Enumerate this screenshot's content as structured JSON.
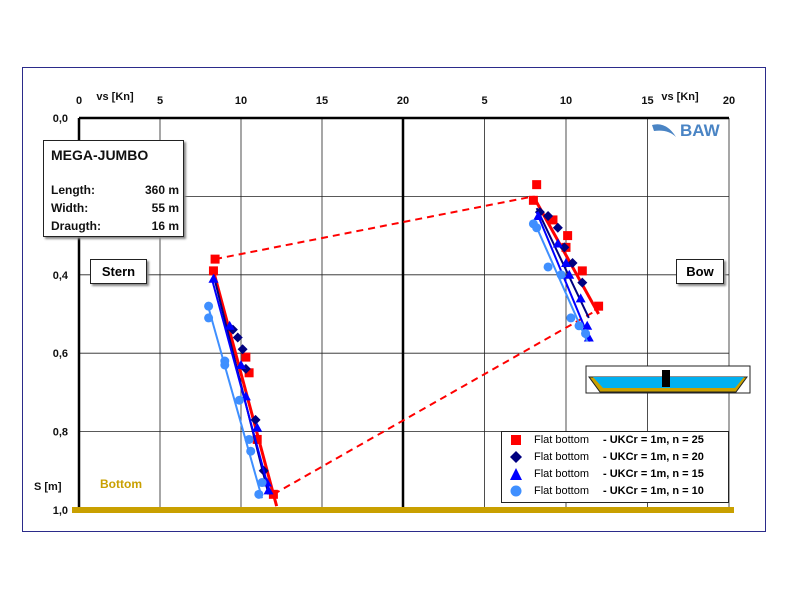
{
  "chart_data": {
    "type": "scatter",
    "panels": [
      {
        "name": "Stern",
        "x_ticks": [
          "0",
          "5",
          "10",
          "15",
          "20"
        ],
        "xlim": [
          0,
          20
        ]
      },
      {
        "name": "Bow",
        "x_ticks": [
          "5",
          "10",
          "15",
          "20"
        ],
        "xlim": [
          0,
          20
        ]
      }
    ],
    "xlabel": "vs [Kn]",
    "ylabel": "S [m]",
    "y_ticks": [
      "0,0",
      "0,4",
      "0,6",
      "0,8",
      "1,0"
    ],
    "ylim": [
      0,
      1.0
    ],
    "grid": true,
    "bottom_label": "Bottom",
    "stern_label": "Stern",
    "bow_label": "Bow",
    "series": [
      {
        "name": "Flat bottom",
        "desc": "- UKCr = 1m, n = 25",
        "marker": "square",
        "color": "#ff0000",
        "stern_points": [
          [
            8.4,
            0.36
          ],
          [
            8.3,
            0.39
          ],
          [
            10.3,
            0.61
          ],
          [
            10.5,
            0.65
          ],
          [
            11.0,
            0.82
          ],
          [
            12.0,
            0.96
          ]
        ],
        "stern_fit": [
          [
            8.3,
            0.39
          ],
          [
            12.2,
            0.99
          ]
        ],
        "bow_points": [
          [
            8.2,
            0.17
          ],
          [
            8.0,
            0.21
          ],
          [
            9.2,
            0.26
          ],
          [
            10.1,
            0.3
          ],
          [
            10.0,
            0.33
          ],
          [
            11.0,
            0.39
          ],
          [
            12.0,
            0.48
          ]
        ],
        "bow_fit": [
          [
            8.0,
            0.2
          ],
          [
            12.0,
            0.5
          ]
        ]
      },
      {
        "name": "Flat bottom",
        "desc": "- UKCr = 1m, n = 20",
        "marker": "diamond",
        "color": "#000080",
        "stern_points": [
          [
            9.5,
            0.54
          ],
          [
            9.8,
            0.56
          ],
          [
            10.1,
            0.59
          ],
          [
            10.3,
            0.64
          ],
          [
            10.9,
            0.77
          ],
          [
            11.4,
            0.9
          ]
        ],
        "stern_fit": [
          [
            8.3,
            0.4
          ],
          [
            11.7,
            0.96
          ]
        ],
        "bow_points": [
          [
            8.4,
            0.24
          ],
          [
            8.9,
            0.25
          ],
          [
            9.5,
            0.28
          ],
          [
            9.9,
            0.33
          ],
          [
            10.4,
            0.37
          ],
          [
            11.0,
            0.42
          ]
        ],
        "bow_fit": [
          [
            8.2,
            0.23
          ],
          [
            11.4,
            0.51
          ]
        ]
      },
      {
        "name": "Flat bottom",
        "desc": "- UKCr = 1m, n = 15",
        "marker": "triangle",
        "color": "#0000ff",
        "stern_points": [
          [
            8.3,
            0.41
          ],
          [
            9.3,
            0.53
          ],
          [
            10.0,
            0.63
          ],
          [
            10.3,
            0.71
          ],
          [
            11.0,
            0.79
          ],
          [
            11.6,
            0.93
          ],
          [
            11.7,
            0.95
          ]
        ],
        "stern_fit": [
          [
            8.2,
            0.41
          ],
          [
            11.8,
            0.96
          ]
        ],
        "bow_points": [
          [
            8.3,
            0.25
          ],
          [
            9.5,
            0.32
          ],
          [
            10.0,
            0.37
          ],
          [
            10.2,
            0.4
          ],
          [
            10.9,
            0.46
          ],
          [
            11.3,
            0.53
          ],
          [
            11.4,
            0.56
          ]
        ],
        "bow_fit": [
          [
            8.2,
            0.24
          ],
          [
            11.5,
            0.57
          ]
        ]
      },
      {
        "name": "Flat bottom",
        "desc": "- UKCr = 1m, n = 10",
        "marker": "circle",
        "color": "#3f8fff",
        "stern_points": [
          [
            8.0,
            0.48
          ],
          [
            8.0,
            0.51
          ],
          [
            9.0,
            0.62
          ],
          [
            9.0,
            0.63
          ],
          [
            9.9,
            0.72
          ],
          [
            10.5,
            0.82
          ],
          [
            10.6,
            0.85
          ],
          [
            11.3,
            0.93
          ],
          [
            11.1,
            0.96
          ]
        ],
        "stern_fit": [
          [
            7.9,
            0.47
          ],
          [
            11.3,
            0.97
          ]
        ],
        "bow_points": [
          [
            8.0,
            0.27
          ],
          [
            8.2,
            0.28
          ],
          [
            8.9,
            0.38
          ],
          [
            9.7,
            0.4
          ],
          [
            10.3,
            0.51
          ],
          [
            10.8,
            0.53
          ],
          [
            11.2,
            0.55
          ]
        ],
        "bow_fit": [
          [
            8.0,
            0.26
          ],
          [
            11.3,
            0.57
          ]
        ]
      }
    ],
    "connectors": [
      {
        "from_panel": "Stern",
        "from": [
          8.4,
          0.36
        ],
        "to_panel": "Bow",
        "to": [
          8.0,
          0.2
        ]
      },
      {
        "from_panel": "Stern",
        "from": [
          12.0,
          0.96
        ],
        "to_panel": "Bow",
        "to": [
          11.9,
          0.49
        ]
      }
    ]
  },
  "ship_info": {
    "title": "MEGA-JUMBO",
    "rows": [
      {
        "label": "Length:",
        "value": "360  m"
      },
      {
        "label": "Width:",
        "value": "55  m"
      },
      {
        "label": "Draugth:",
        "value": "16  m"
      }
    ]
  },
  "logo": {
    "text": "BAW"
  },
  "colors": {
    "bottom": "#c9a000",
    "water": "#00b0f0",
    "ground": "#c9a000",
    "frame": "#2b2b8a"
  }
}
